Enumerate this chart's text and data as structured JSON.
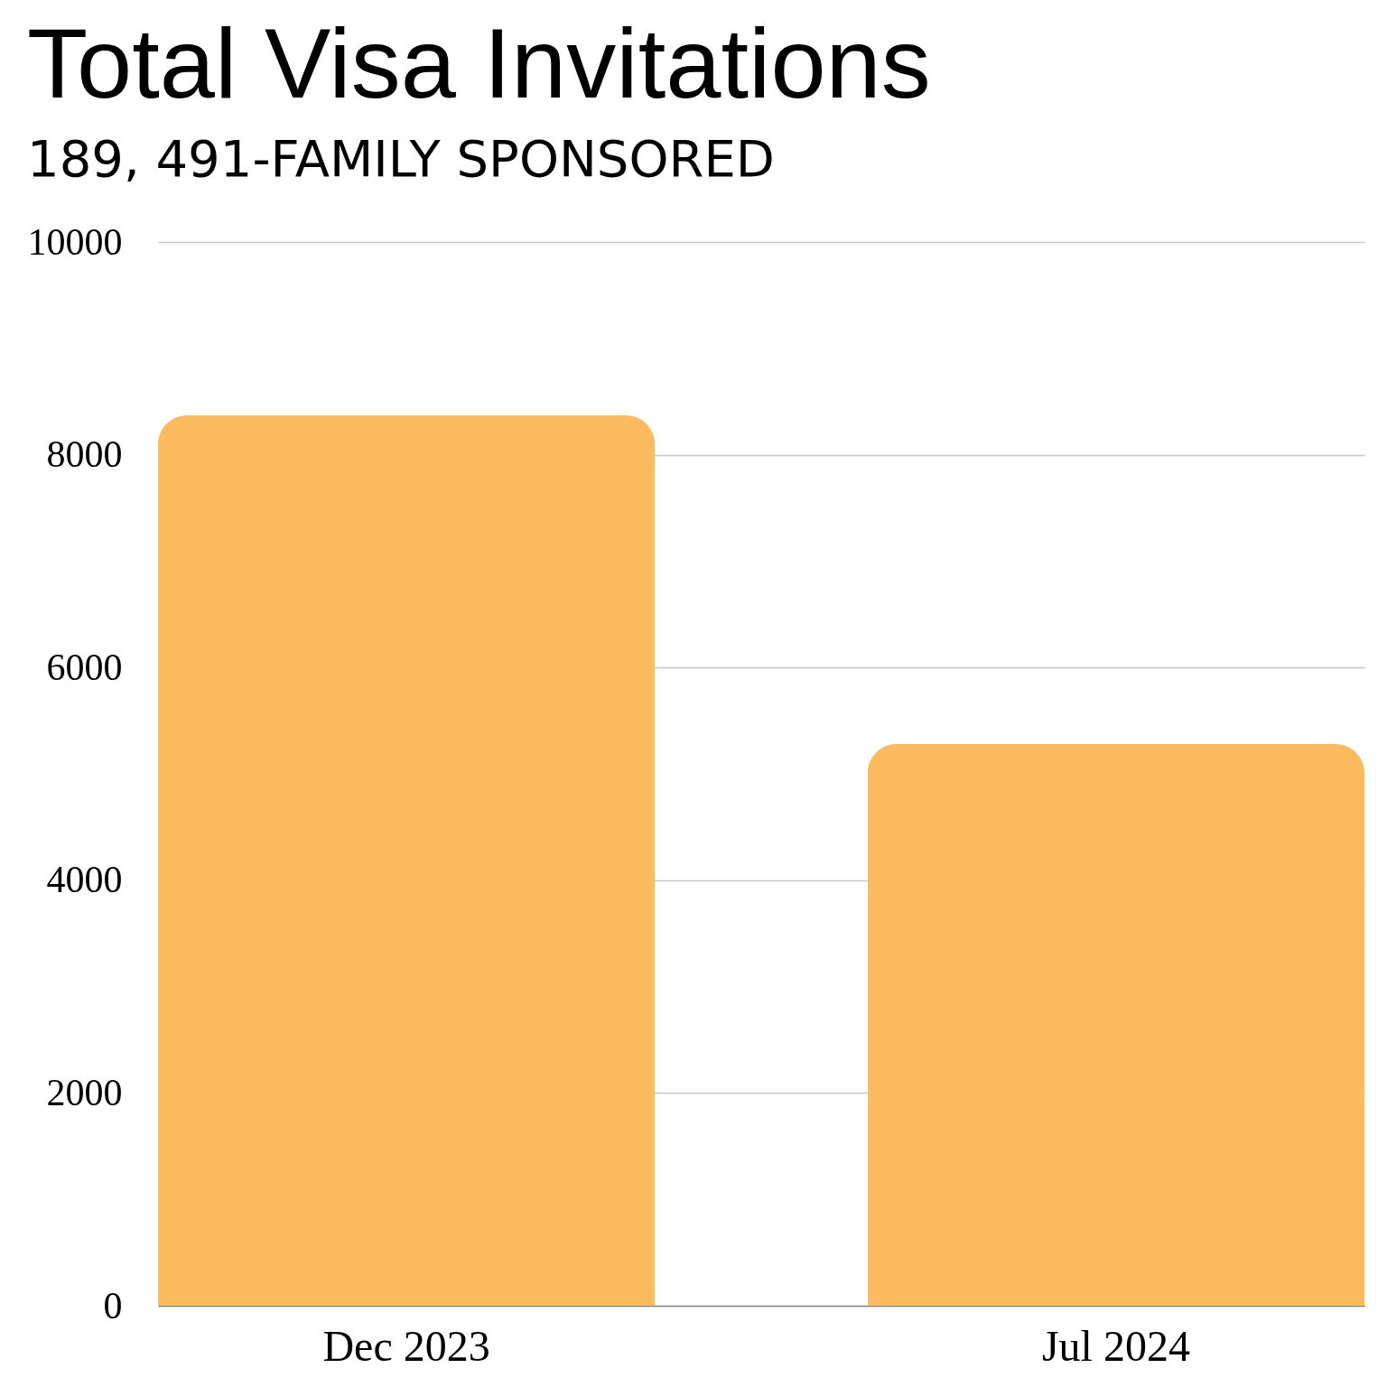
{
  "chart_data": {
    "type": "bar",
    "title": "Total Visa Invitations",
    "subtitle": "189, 491-FAMILY SPONSORED",
    "categories": [
      "Dec 2023",
      "Jul 2024"
    ],
    "values": [
      8370,
      5280
    ],
    "color": "#fcbb5f",
    "ylim": [
      0,
      10000
    ],
    "yticks": [
      0,
      2000,
      4000,
      6000,
      8000,
      10000
    ],
    "grid": "y"
  }
}
